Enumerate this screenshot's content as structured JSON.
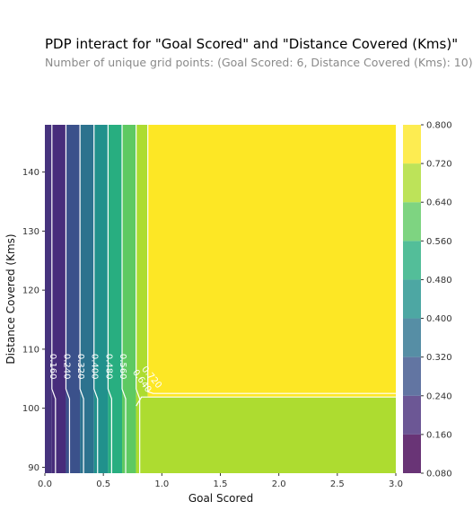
{
  "header": {
    "title": "PDP interact for \"Goal Scored\" and \"Distance Covered (Kms)\"",
    "subtitle": "Number of unique grid points: (Goal Scored: 6, Distance Covered (Kms): 10)"
  },
  "chart_data": {
    "type": "heatmap",
    "title": "PDP interact for \"Goal Scored\" and \"Distance Covered (Kms)\"",
    "subtitle": "Number of unique grid points: (Goal Scored: 6, Distance Covered (Kms): 10)",
    "xlabel": "Goal Scored",
    "ylabel": "Distance Covered (Kms)",
    "xlim": [
      0.0,
      3.0
    ],
    "ylim": [
      89,
      148
    ],
    "xticks": [
      "0.0",
      "0.5",
      "1.0",
      "1.5",
      "2.0",
      "2.5",
      "3.0"
    ],
    "yticks": [
      "90",
      "100",
      "110",
      "120",
      "130",
      "140"
    ],
    "x_step_boundaries": [
      0.06,
      0.18,
      0.3,
      0.42,
      0.54,
      0.66,
      0.78,
      0.88
    ],
    "y_split": 101.9,
    "levels": [
      0.08,
      0.16,
      0.24,
      0.32,
      0.4,
      0.48,
      0.56,
      0.64,
      0.72,
      0.8
    ],
    "colorbar_ticks": [
      "0.800",
      "0.720",
      "0.640",
      "0.560",
      "0.480",
      "0.400",
      "0.320",
      "0.240",
      "0.160",
      "0.080"
    ],
    "colors": [
      "#46337e",
      "#472d7b",
      "#3b518b",
      "#2c728e",
      "#21918c",
      "#28ae80",
      "#5ec962",
      "#addc30",
      "#d8e219",
      "#fde725"
    ],
    "contour_labels": [
      "0.160",
      "0.240",
      "0.320",
      "0.400",
      "0.480",
      "0.560",
      "0.640",
      "0.720"
    ],
    "legend": "colorbar-right",
    "grid": false
  }
}
